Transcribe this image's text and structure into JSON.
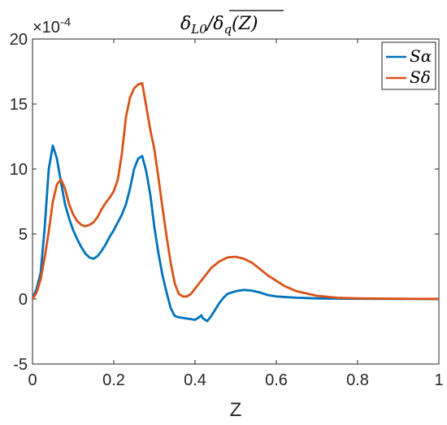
{
  "chart_data": {
    "type": "line",
    "title": "δL0/δq(Z)",
    "title_parts": {
      "main": "δ",
      "sub1": "L0",
      "slash": "/",
      "over_main": "δ",
      "over_sub": "q",
      "over_arg": "(Z)"
    },
    "xlabel": "Z",
    "ylabel": "",
    "exponent_label": "×10",
    "exponent_power": "-4",
    "xlim": [
      0,
      1
    ],
    "ylim": [
      -5,
      20
    ],
    "xticks": [
      0,
      0.2,
      0.4,
      0.6,
      0.8,
      1
    ],
    "xtick_labels": [
      "0",
      "0.2",
      "0.4",
      "0.6",
      "0.8",
      "1"
    ],
    "yticks": [
      -5,
      0,
      5,
      10,
      15,
      20
    ],
    "ytick_labels": [
      "-5",
      "0",
      "5",
      "10",
      "15",
      "20"
    ],
    "grid": false,
    "legend_position": "top-right",
    "series": [
      {
        "name": "Sα",
        "color": "#0072BD",
        "x": [
          0,
          0.01,
          0.02,
          0.03,
          0.04,
          0.05,
          0.06,
          0.07,
          0.08,
          0.09,
          0.1,
          0.11,
          0.12,
          0.13,
          0.14,
          0.15,
          0.16,
          0.17,
          0.18,
          0.19,
          0.2,
          0.21,
          0.22,
          0.23,
          0.24,
          0.25,
          0.26,
          0.27,
          0.28,
          0.29,
          0.3,
          0.31,
          0.32,
          0.33,
          0.34,
          0.35,
          0.36,
          0.37,
          0.38,
          0.39,
          0.4,
          0.41,
          0.415,
          0.42,
          0.43,
          0.44,
          0.45,
          0.46,
          0.47,
          0.48,
          0.5,
          0.52,
          0.54,
          0.56,
          0.58,
          0.6,
          0.65,
          0.7,
          0.8,
          0.9,
          1.0
        ],
        "y": [
          0,
          0.8,
          2.0,
          5.5,
          10.0,
          11.8,
          10.8,
          9.0,
          7.3,
          6.2,
          5.3,
          4.6,
          4.0,
          3.5,
          3.2,
          3.1,
          3.3,
          3.7,
          4.2,
          4.8,
          5.3,
          5.9,
          6.5,
          7.3,
          8.5,
          10.0,
          10.8,
          11.0,
          9.8,
          8.0,
          5.5,
          3.5,
          1.8,
          0.5,
          -0.7,
          -1.3,
          -1.4,
          -1.45,
          -1.5,
          -1.55,
          -1.6,
          -1.4,
          -1.25,
          -1.5,
          -1.7,
          -1.3,
          -0.8,
          -0.3,
          0.1,
          0.4,
          0.6,
          0.7,
          0.65,
          0.5,
          0.3,
          0.2,
          0.1,
          0.05,
          0.02,
          0.01,
          0.0
        ]
      },
      {
        "name": "Sδ",
        "color": "#D95319",
        "x": [
          0,
          0.01,
          0.02,
          0.03,
          0.04,
          0.05,
          0.06,
          0.07,
          0.08,
          0.09,
          0.1,
          0.11,
          0.12,
          0.13,
          0.14,
          0.15,
          0.16,
          0.17,
          0.18,
          0.19,
          0.2,
          0.21,
          0.22,
          0.23,
          0.24,
          0.25,
          0.26,
          0.27,
          0.28,
          0.29,
          0.3,
          0.31,
          0.32,
          0.33,
          0.34,
          0.35,
          0.36,
          0.37,
          0.38,
          0.39,
          0.4,
          0.42,
          0.44,
          0.46,
          0.48,
          0.5,
          0.52,
          0.54,
          0.56,
          0.58,
          0.6,
          0.62,
          0.65,
          0.7,
          0.75,
          0.8,
          0.9,
          1.0
        ],
        "y": [
          0,
          0.5,
          1.5,
          3.2,
          5.2,
          7.5,
          8.8,
          9.2,
          8.5,
          7.3,
          6.5,
          6.0,
          5.7,
          5.6,
          5.7,
          5.9,
          6.3,
          6.9,
          7.4,
          7.8,
          8.3,
          9.2,
          11.2,
          14.0,
          15.5,
          16.2,
          16.5,
          16.6,
          14.8,
          13.0,
          11.5,
          9.3,
          7.0,
          4.8,
          2.8,
          1.2,
          0.4,
          0.2,
          0.2,
          0.4,
          0.8,
          1.6,
          2.4,
          2.9,
          3.2,
          3.25,
          3.1,
          2.8,
          2.3,
          1.8,
          1.4,
          1.0,
          0.6,
          0.25,
          0.1,
          0.05,
          0.02,
          0.01
        ]
      }
    ]
  }
}
